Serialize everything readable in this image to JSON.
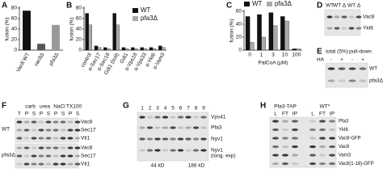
{
  "chart_data": [
    {
      "type": "bar",
      "panel_label": "A",
      "ylabel": "fusion (%)",
      "categories": [
        "Vac8 WT",
        "vac8Δ",
        "pfa3Δ"
      ],
      "values": [
        75,
        12,
        48
      ],
      "colors": [
        "#111111",
        "#555555",
        "#999999"
      ],
      "ylim": [
        0,
        80
      ],
      "yticks": [
        0,
        20,
        40,
        60,
        80
      ]
    },
    {
      "type": "bar",
      "panel_label": "B",
      "ylabel": "fusion (%)",
      "legend": "upper right",
      "categories": [
        "control",
        "α-Sec17",
        "α-Sec18",
        "Gdi1 (boil)",
        "Gdi1",
        "α-Vps18",
        "α-Vps33",
        "α-Ykt6",
        "α-Vam3"
      ],
      "series": [
        {
          "name": "WT",
          "color": "#111111",
          "values": [
            70,
            8,
            5,
            70,
            5,
            5,
            5,
            5,
            8
          ]
        },
        {
          "name": "pfa3Δ",
          "color": "#aaaaaa",
          "values": [
            48,
            5,
            3,
            48,
            3,
            3,
            3,
            3,
            5
          ]
        }
      ],
      "ylim": [
        0,
        80
      ],
      "yticks": [
        0,
        20,
        40,
        60,
        80
      ]
    },
    {
      "type": "bar",
      "panel_label": "C",
      "ylabel": "fusion (%)",
      "xlabel": "PalCoA (μM)",
      "legend": "top",
      "categories": [
        "0",
        "1",
        "3",
        "10",
        "100"
      ],
      "series": [
        {
          "name": "WT",
          "color": "#111111",
          "values": [
            52,
            55,
            58,
            52,
            2
          ]
        },
        {
          "name": "pfa3Δ",
          "color": "#aaaaaa",
          "values": [
            12,
            20,
            38,
            45,
            2
          ]
        }
      ],
      "ylim": [
        0,
        60
      ],
      "yticks": [
        0,
        20,
        40,
        60
      ]
    }
  ],
  "panel_D": {
    "label": "D",
    "lanes": [
      "WT",
      "WT",
      "Δ",
      "WT",
      "Δ"
    ],
    "proteins": [
      "Vac8",
      "Ykt6"
    ]
  },
  "panel_E": {
    "label": "E",
    "headers": [
      "total (5%)",
      "pull-down"
    ],
    "treatment": "HA",
    "signs": [
      "-",
      "+",
      "-",
      "+"
    ],
    "strains": [
      "WT",
      "pfa3Δ"
    ]
  },
  "panel_F": {
    "label": "F",
    "conditions": [
      "carb",
      "urea",
      "NaCl",
      "TX100"
    ],
    "fractions": [
      "T",
      "P",
      "S",
      "P",
      "S",
      "P",
      "S",
      "P",
      "S"
    ],
    "strains": [
      "WT",
      "pfa3Δ"
    ],
    "proteins": [
      "Vac8",
      "Sec17",
      "Vti1"
    ]
  },
  "panel_G": {
    "label": "G",
    "lanes": [
      "1",
      "2",
      "3",
      "4",
      "5",
      "6",
      "7",
      "8",
      "9"
    ],
    "proteins": [
      "Vps41",
      "Pfa3",
      "Nyv1",
      "Nyv1",
      "(long. exp)"
    ],
    "markers": [
      "44 kD",
      "186 kD"
    ]
  },
  "panel_H": {
    "label": "H",
    "groups": [
      "Pfa3-TAP",
      "WT*"
    ],
    "fractions": [
      "L",
      "FT",
      "IP",
      "L",
      "FT",
      "IP"
    ],
    "proteins": [
      "Pfa3",
      "Ykt6",
      "Vac8-GFP",
      "Vac8",
      "Vam3",
      "Vac8(1-18)-GFP"
    ]
  }
}
